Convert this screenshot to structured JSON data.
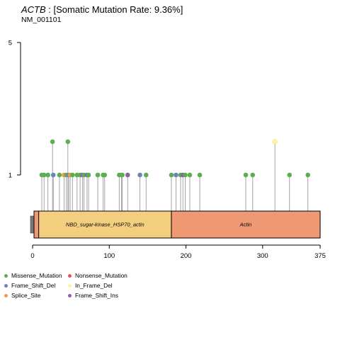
{
  "header": {
    "gene": "ACTB",
    "rate_text": " : [Somatic Mutation Rate: 9.36%]",
    "transcript": "NM_001101"
  },
  "chart_data": {
    "type": "lollipop",
    "xlim": [
      0,
      375
    ],
    "x_ticks": [
      0,
      100,
      200,
      300,
      375
    ],
    "y_ticks": [
      1,
      5
    ],
    "protein_length": 375,
    "domains": [
      {
        "name": "NBD_sugar-kinase_HSP70_actin",
        "start": 8,
        "end": 181,
        "color": "#F2CE7E"
      },
      {
        "name": "Actin",
        "start": 181,
        "end": 375,
        "color": "#EE9874"
      }
    ],
    "legend": [
      {
        "label": "Missense_Mutation",
        "color": "#5DAE52"
      },
      {
        "label": "Nonsense_Mutation",
        "color": "#E9545B"
      },
      {
        "label": "Frame_Shift_Del",
        "color": "#6C83BE"
      },
      {
        "label": "In_Frame_Del",
        "color": "#FCF59A"
      },
      {
        "label": "Splice_Site",
        "color": "#EE9A50"
      },
      {
        "label": "Frame_Shift_Ins",
        "color": "#8A62A8"
      }
    ],
    "mutations": [
      {
        "pos": 12,
        "count": 1,
        "type": "Missense_Mutation"
      },
      {
        "pos": 15,
        "count": 1,
        "type": "Missense_Mutation"
      },
      {
        "pos": 20,
        "count": 1,
        "type": "Missense_Mutation"
      },
      {
        "pos": 26,
        "count": 2,
        "type": "Missense_Mutation"
      },
      {
        "pos": 27,
        "count": 1,
        "type": "Frame_Shift_Del"
      },
      {
        "pos": 35,
        "count": 1,
        "type": "Missense_Mutation"
      },
      {
        "pos": 41,
        "count": 1,
        "type": "Splice_Site"
      },
      {
        "pos": 44,
        "count": 1,
        "type": "Missense_Mutation"
      },
      {
        "pos": 46,
        "count": 2,
        "type": "Missense_Mutation"
      },
      {
        "pos": 47,
        "count": 1,
        "type": "Frame_Shift_Del"
      },
      {
        "pos": 49,
        "count": 1,
        "type": "Splice_Site"
      },
      {
        "pos": 52,
        "count": 1,
        "type": "Missense_Mutation"
      },
      {
        "pos": 58,
        "count": 1,
        "type": "Missense_Mutation"
      },
      {
        "pos": 62,
        "count": 1,
        "type": "Missense_Mutation"
      },
      {
        "pos": 65,
        "count": 1,
        "type": "Frame_Shift_Ins"
      },
      {
        "pos": 67,
        "count": 1,
        "type": "Missense_Mutation"
      },
      {
        "pos": 71,
        "count": 1,
        "type": "Frame_Shift_Ins"
      },
      {
        "pos": 73,
        "count": 1,
        "type": "Missense_Mutation"
      },
      {
        "pos": 85,
        "count": 1,
        "type": "Missense_Mutation"
      },
      {
        "pos": 92,
        "count": 1,
        "type": "Missense_Mutation"
      },
      {
        "pos": 94,
        "count": 1,
        "type": "Missense_Mutation"
      },
      {
        "pos": 113,
        "count": 1,
        "type": "Missense_Mutation"
      },
      {
        "pos": 116,
        "count": 1,
        "type": "Missense_Mutation"
      },
      {
        "pos": 117,
        "count": 1,
        "type": "Missense_Mutation"
      },
      {
        "pos": 124,
        "count": 1,
        "type": "Frame_Shift_Ins"
      },
      {
        "pos": 140,
        "count": 1,
        "type": "Frame_Shift_Del"
      },
      {
        "pos": 148,
        "count": 1,
        "type": "Missense_Mutation"
      },
      {
        "pos": 181,
        "count": 1,
        "type": "Missense_Mutation"
      },
      {
        "pos": 187,
        "count": 1,
        "type": "Frame_Shift_Del"
      },
      {
        "pos": 193,
        "count": 1,
        "type": "Missense_Mutation"
      },
      {
        "pos": 196,
        "count": 1,
        "type": "Frame_Shift_Ins"
      },
      {
        "pos": 199,
        "count": 1,
        "type": "Missense_Mutation"
      },
      {
        "pos": 205,
        "count": 1,
        "type": "Missense_Mutation"
      },
      {
        "pos": 218,
        "count": 1,
        "type": "Missense_Mutation"
      },
      {
        "pos": 278,
        "count": 1,
        "type": "Missense_Mutation"
      },
      {
        "pos": 287,
        "count": 1,
        "type": "Missense_Mutation"
      },
      {
        "pos": 316,
        "count": 2,
        "type": "In_Frame_Del"
      },
      {
        "pos": 335,
        "count": 1,
        "type": "Missense_Mutation"
      },
      {
        "pos": 359,
        "count": 1,
        "type": "Missense_Mutation"
      }
    ]
  }
}
